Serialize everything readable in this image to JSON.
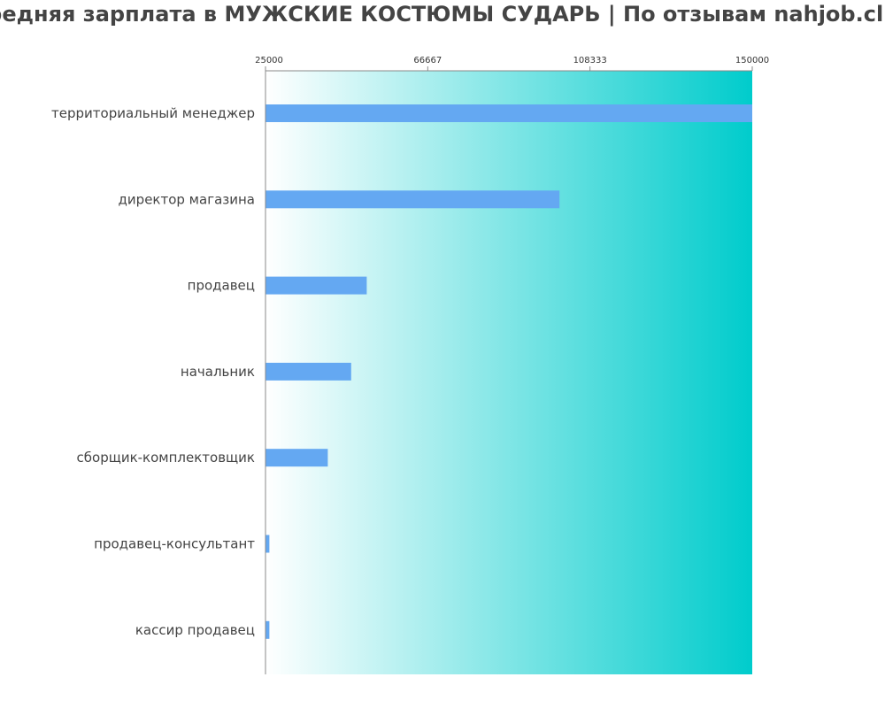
{
  "chart_data": {
    "type": "bar",
    "orientation": "horizontal",
    "title": "Средняя зарплата в МУЖСКИЕ КОСТЮМЫ СУДАРЬ | По отзывам nahjob.club",
    "xlabel": "",
    "ylabel": "",
    "xlim": [
      25000,
      150000
    ],
    "tick_labels": [
      "25000",
      "66667",
      "108333",
      "150000"
    ],
    "categories": [
      "территориальный менеджер",
      "директор магазина",
      "продавец",
      "начальник",
      "сборщик-комплектовщик",
      "продавец-консультант",
      "кассир продавец"
    ],
    "values": [
      150000,
      100500,
      51000,
      47000,
      41000,
      26000,
      26000
    ],
    "grid": false,
    "legend": "none",
    "colors": {
      "bar": "#64a8f2",
      "background_start": "#ffffff",
      "background_end": "#00cccc",
      "axis": "#888888"
    }
  }
}
